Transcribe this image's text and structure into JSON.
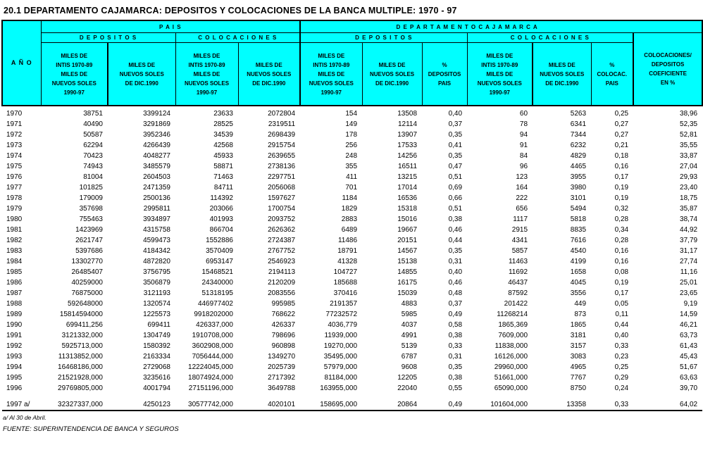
{
  "page_title": "20.1  DEPARTAMENTO  CAJAMARCA:  DEPOSITOS Y COLOCACIONES DE LA BANCA MULTIPLE: 1970 - 97",
  "colors": {
    "header_bg": "#00FFFF",
    "border": "#000000",
    "text": "#000000",
    "page_bg": "#FFFFFF"
  },
  "table": {
    "header": {
      "anio": "A Ñ O",
      "group_pais": "P A I S",
      "group_depto": "D E P A R T A M E N T O      C A J A M A R C A",
      "sub_depositos": "D E P O S I T O S",
      "sub_colocaciones": "C O L O C A C I O N E S",
      "col_intis": [
        "MILES DE",
        "INTIS 1970-89",
        "MILES DE",
        "NUEVOS SOLES",
        "1990-97"
      ],
      "col_soles": [
        "MILES DE",
        "NUEVOS SOLES",
        "DE DIC.1990"
      ],
      "col_pct_depositos": [
        "%",
        "DEPOSITOS",
        "PAIS"
      ],
      "col_pct_colocaciones": [
        "%",
        "COLOCAC.",
        "PAIS"
      ],
      "col_coeficiente": [
        "COLOCACIONES/",
        "DEPOSITOS",
        "COEFICIENTE",
        "EN %"
      ]
    },
    "rows": [
      [
        "1970",
        "38751",
        "3399124",
        "23633",
        "2072804",
        "154",
        "13508",
        "0,40",
        "60",
        "5263",
        "0,25",
        "38,96"
      ],
      [
        "1971",
        "40490",
        "3291869",
        "28525",
        "2319511",
        "149",
        "12114",
        "0,37",
        "78",
        "6341",
        "0,27",
        "52,35"
      ],
      [
        "1972",
        "50587",
        "3952346",
        "34539",
        "2698439",
        "178",
        "13907",
        "0,35",
        "94",
        "7344",
        "0,27",
        "52,81"
      ],
      [
        "1973",
        "62294",
        "4266439",
        "42568",
        "2915754",
        "256",
        "17533",
        "0,41",
        "91",
        "6232",
        "0,21",
        "35,55"
      ],
      [
        "1974",
        "70423",
        "4048277",
        "45933",
        "2639655",
        "248",
        "14256",
        "0,35",
        "84",
        "4829",
        "0,18",
        "33,87"
      ],
      [
        "1975",
        "74943",
        "3485579",
        "58871",
        "2738136",
        "355",
        "16511",
        "0,47",
        "96",
        "4465",
        "0,16",
        "27,04"
      ],
      [
        "1976",
        "81004",
        "2604503",
        "71463",
        "2297751",
        "411",
        "13215",
        "0,51",
        "123",
        "3955",
        "0,17",
        "29,93"
      ],
      [
        "1977",
        "101825",
        "2471359",
        "84711",
        "2056068",
        "701",
        "17014",
        "0,69",
        "164",
        "3980",
        "0,19",
        "23,40"
      ],
      [
        "1978",
        "179009",
        "2500136",
        "114392",
        "1597627",
        "1184",
        "16536",
        "0,66",
        "222",
        "3101",
        "0,19",
        "18,75"
      ],
      [
        "1979",
        "357698",
        "2995811",
        "203066",
        "1700754",
        "1829",
        "15318",
        "0,51",
        "656",
        "5494",
        "0,32",
        "35,87"
      ],
      [
        "1980",
        "755463",
        "3934897",
        "401993",
        "2093752",
        "2883",
        "15016",
        "0,38",
        "1117",
        "5818",
        "0,28",
        "38,74"
      ],
      [
        "1981",
        "1423969",
        "4315758",
        "866704",
        "2626362",
        "6489",
        "19667",
        "0,46",
        "2915",
        "8835",
        "0,34",
        "44,92"
      ],
      [
        "1982",
        "2621747",
        "4599473",
        "1552886",
        "2724387",
        "11486",
        "20151",
        "0,44",
        "4341",
        "7616",
        "0,28",
        "37,79"
      ],
      [
        "1983",
        "5397686",
        "4184342",
        "3570409",
        "2767752",
        "18791",
        "14567",
        "0,35",
        "5857",
        "4540",
        "0,16",
        "31,17"
      ],
      [
        "1984",
        "13302770",
        "4872820",
        "6953147",
        "2546923",
        "41328",
        "15138",
        "0,31",
        "11463",
        "4199",
        "0,16",
        "27,74"
      ],
      [
        "1985",
        "26485407",
        "3756795",
        "15468521",
        "2194113",
        "104727",
        "14855",
        "0,40",
        "11692",
        "1658",
        "0,08",
        "11,16"
      ],
      [
        "1986",
        "40259000",
        "3506879",
        "24340000",
        "2120209",
        "185688",
        "16175",
        "0,46",
        "46437",
        "4045",
        "0,19",
        "25,01"
      ],
      [
        "1987",
        "76875000",
        "3121193",
        "51318195",
        "2083556",
        "370416",
        "15039",
        "0,48",
        "87592",
        "3556",
        "0,17",
        "23,65"
      ],
      [
        "1988",
        "592648000",
        "1320574",
        "446977402",
        "995985",
        "2191357",
        "4883",
        "0,37",
        "201422",
        "449",
        "0,05",
        "9,19"
      ],
      [
        "1989",
        "15814594000",
        "1225573",
        "9918202000",
        "768622",
        "77232572",
        "5985",
        "0,49",
        "11268214",
        "873",
        "0,11",
        "14,59"
      ],
      [
        "1990",
        "699411,256",
        "699411",
        "426337,000",
        "426337",
        "4036,779",
        "4037",
        "0,58",
        "1865,369",
        "1865",
        "0,44",
        "46,21"
      ],
      [
        "1991",
        "3121332,000",
        "1304749",
        "1910708,000",
        "798696",
        "11939,000",
        "4991",
        "0,38",
        "7609,000",
        "3181",
        "0,40",
        "63,73"
      ],
      [
        "1992",
        "5925713,000",
        "1580392",
        "3602908,000",
        "960898",
        "19270,000",
        "5139",
        "0,33",
        "11838,000",
        "3157",
        "0,33",
        "61,43"
      ],
      [
        "1993",
        "11313852,000",
        "2163334",
        "7056444,000",
        "1349270",
        "35495,000",
        "6787",
        "0,31",
        "16126,000",
        "3083",
        "0,23",
        "45,43"
      ],
      [
        "1994",
        "16468186,000",
        "2729068",
        "12224045,000",
        "2025739",
        "57979,000",
        "9608",
        "0,35",
        "29960,000",
        "4965",
        "0,25",
        "51,67"
      ],
      [
        "1995",
        "21521928,000",
        "3235616",
        "18074924,000",
        "2717392",
        "81184,000",
        "12205",
        "0,38",
        "51661,000",
        "7767",
        "0,29",
        "63,63"
      ],
      [
        "1996",
        "29769805,000",
        "4001794",
        "27151196,000",
        "3649788",
        "163955,000",
        "22040",
        "0,55",
        "65090,000",
        "8750",
        "0,24",
        "39,70"
      ],
      [
        "1997 a/",
        "32327337,000",
        "4250123",
        "30577742,000",
        "4020101",
        "158695,000",
        "20864",
        "0,49",
        "101604,000",
        "13358",
        "0,33",
        "64,02"
      ]
    ]
  },
  "footnotes": {
    "note_a": "a/ Al 30 de Abril.",
    "source": "FUENTE: SUPERINTENDENCIA DE BANCA Y SEGUROS"
  }
}
